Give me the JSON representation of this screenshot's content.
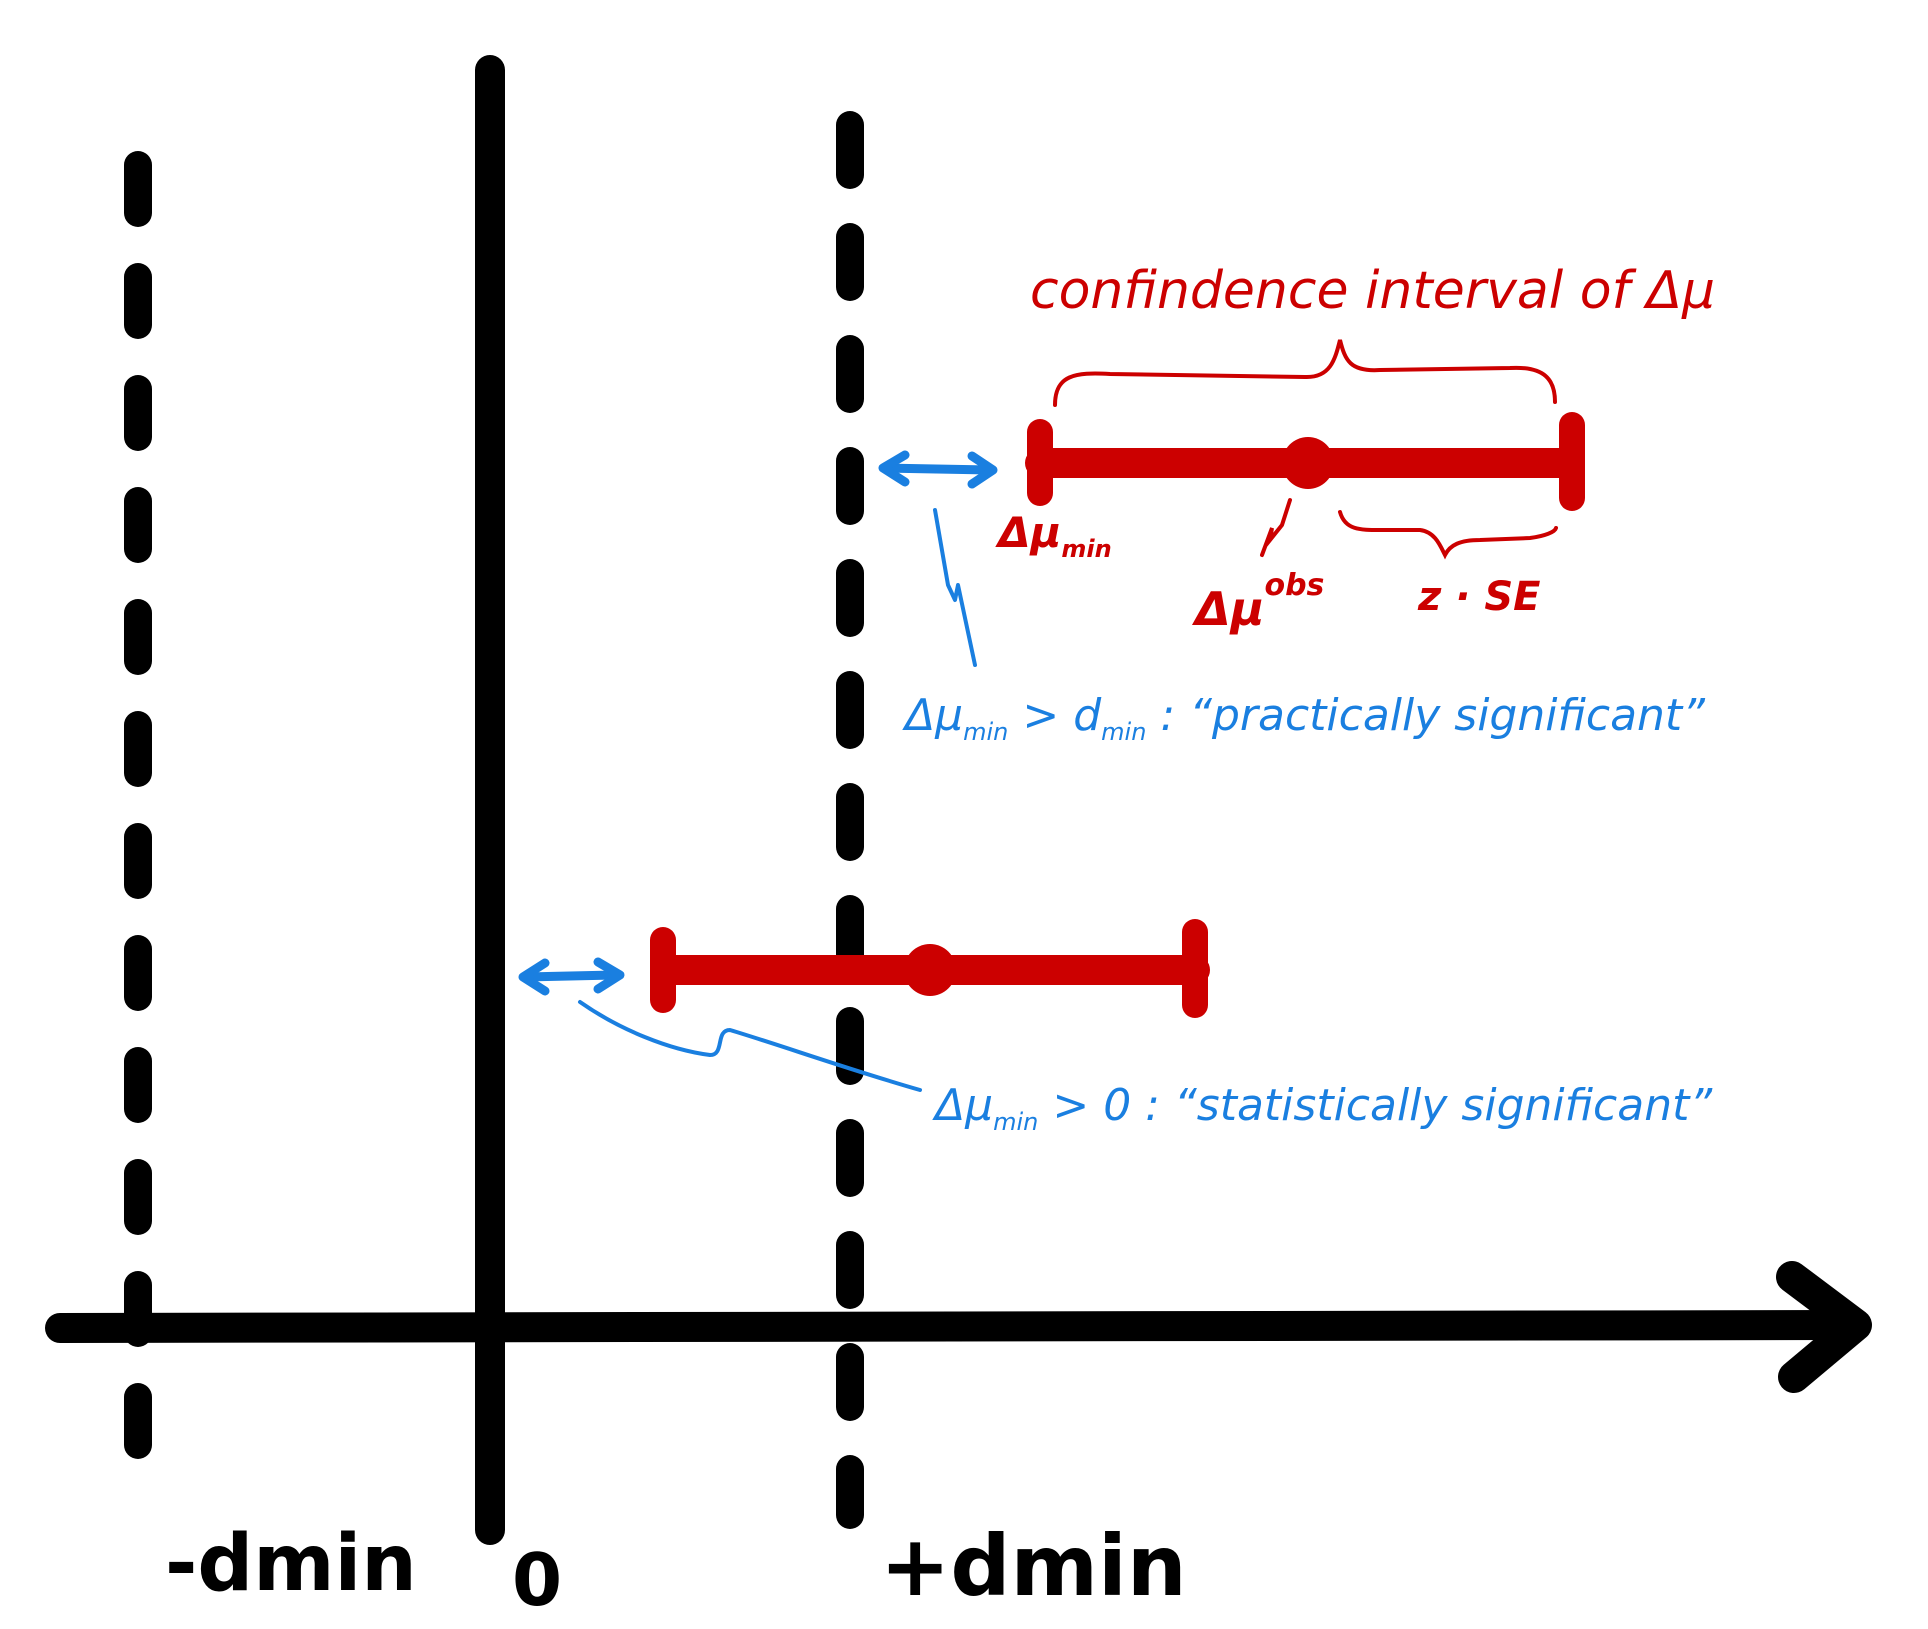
{
  "colors": {
    "ink": "#000000",
    "interval": "#cc0000",
    "annotation": "#1a7fe0",
    "background": "#ffffff"
  },
  "axis_labels": {
    "neg_dmin": "-dmin",
    "zero": "0",
    "pos_dmin": "+dmin"
  },
  "upper_interval": {
    "title": "confindence interval of Δμ",
    "lower_label_main": "Δμ",
    "lower_label_sub": "min",
    "point_label_main": "Δμ",
    "point_label_sup": "obs",
    "halfwidth_label": "z · SE"
  },
  "annotations": {
    "practical": {
      "lhs_main": "Δμ",
      "lhs_sub": "min",
      "op": " > d",
      "rhs_sub": "min",
      "text": " : “practically significant”"
    },
    "statistical": {
      "lhs_main": "Δμ",
      "lhs_sub": "min",
      "text": " > 0 : “statistically significant”"
    }
  },
  "icons": {
    "axis_arrow": "arrow-right-icon",
    "gap_arrow": "double-arrow-icon"
  }
}
